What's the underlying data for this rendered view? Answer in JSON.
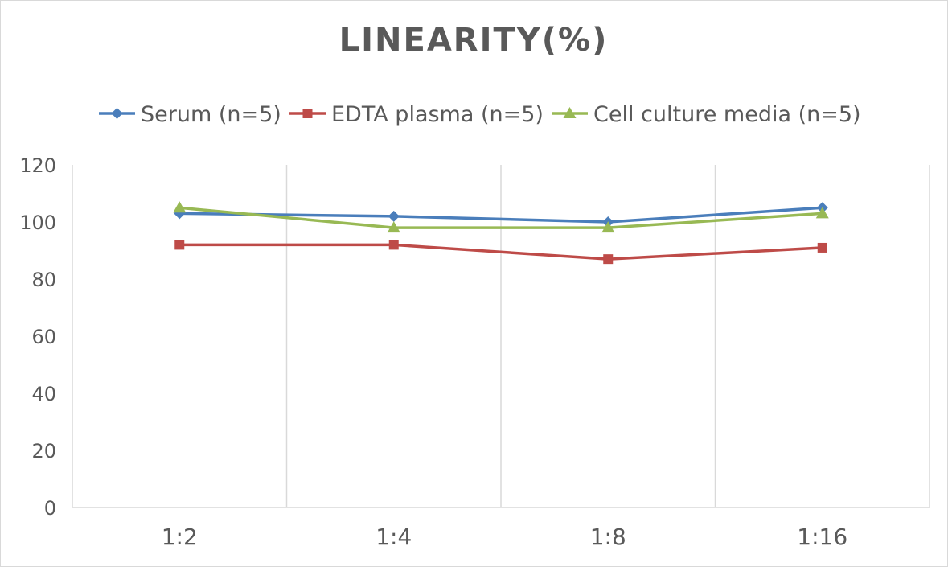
{
  "chart_data": {
    "type": "line",
    "title": "LINEARITY(%)",
    "xlabel": "",
    "ylabel": "",
    "categories": [
      "1:2",
      "1:4",
      "1:8",
      "1:16"
    ],
    "ylim": [
      0,
      120
    ],
    "yticks": [
      0,
      20,
      40,
      60,
      80,
      100,
      120
    ],
    "grid": "vertical",
    "legend_position": "top",
    "series": [
      {
        "name": "Serum (n=5)",
        "values": [
          103,
          102,
          100,
          105
        ],
        "color": "#4a7ebb",
        "marker": "diamond"
      },
      {
        "name": "EDTA plasma (n=5)",
        "values": [
          92,
          92,
          87,
          91
        ],
        "color": "#be4b48",
        "marker": "square"
      },
      {
        "name": "Cell culture media (n=5)",
        "values": [
          105,
          98,
          98,
          103
        ],
        "color": "#98b954",
        "marker": "triangle"
      }
    ]
  }
}
